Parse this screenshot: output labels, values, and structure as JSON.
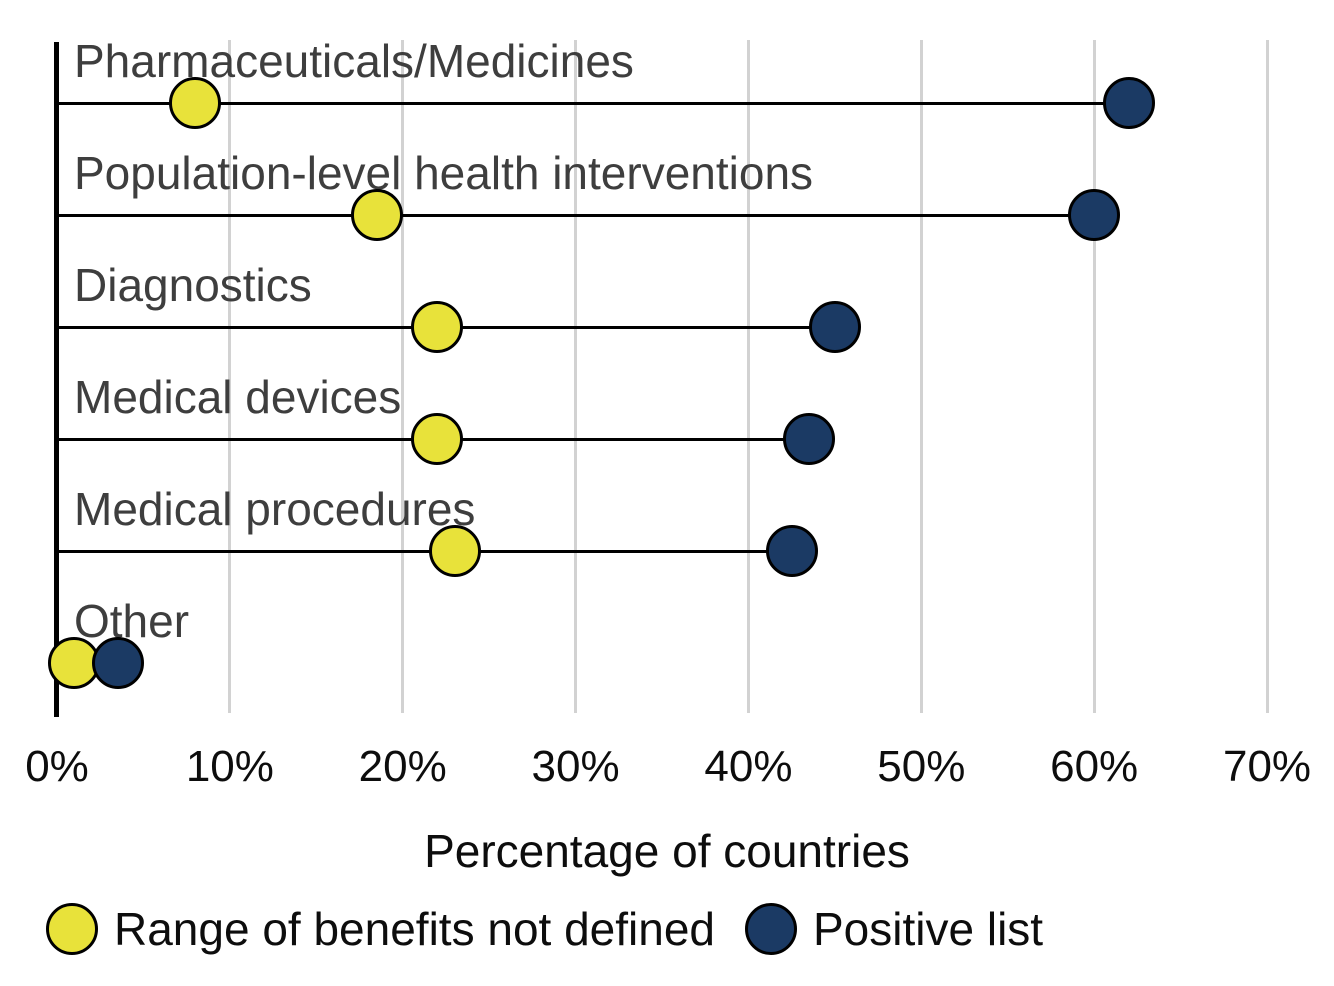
{
  "chart_data": {
    "type": "scatter",
    "variant": "dumbbell-dot-plot",
    "categories": [
      "Pharmaceuticals/Medicines",
      "Population-level health interventions",
      "Diagnostics",
      "Medical devices",
      "Medical procedures",
      "Other"
    ],
    "series": [
      {
        "name": "Range of benefits not defined",
        "color": "#e8e23a",
        "values": [
          8,
          18.5,
          22,
          22,
          23,
          1
        ]
      },
      {
        "name": "Positive list",
        "color": "#1b3a64",
        "values": [
          62,
          60,
          45,
          43.5,
          42.5,
          3.5
        ]
      }
    ],
    "xlabel": "Percentage of countries",
    "x_ticks": [
      "0%",
      "10%",
      "20%",
      "30%",
      "40%",
      "50%",
      "60%",
      "70%"
    ],
    "xlim": [
      0,
      70
    ],
    "grid": "vertical",
    "legend_position": "bottom"
  },
  "colors": {
    "gridline": "#d2d2d2",
    "axis": "#000000",
    "category_label": "#3e3e3e",
    "tick_label": "#0d0d0d"
  }
}
